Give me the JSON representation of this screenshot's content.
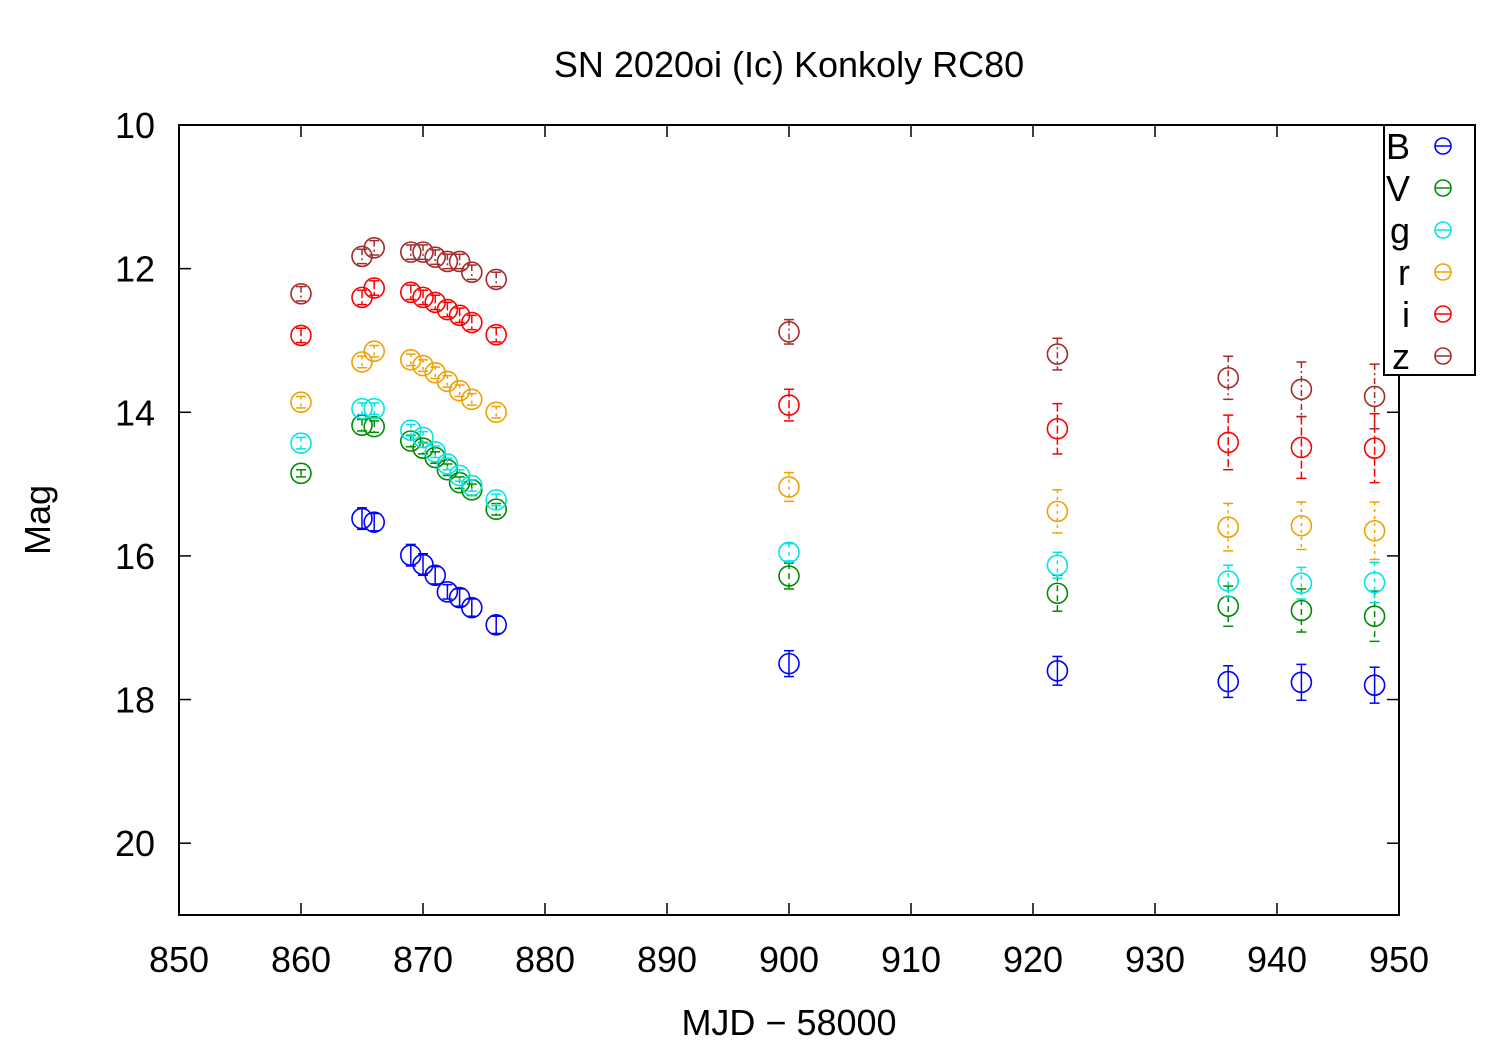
{
  "chart_data": {
    "type": "scatter",
    "title": "SN 2020oi (Ic) Konkoly RC80",
    "xlabel": "MJD − 58000",
    "ylabel": "Mag",
    "xlim": [
      850,
      950
    ],
    "ylim": [
      21,
      10
    ],
    "y_inverted": true,
    "grid": false,
    "legend_position": "top-right",
    "xticks": [
      850,
      860,
      870,
      880,
      890,
      900,
      910,
      920,
      930,
      940,
      950
    ],
    "yticks": [
      10,
      12,
      14,
      16,
      18,
      20
    ],
    "series": [
      {
        "name": "B",
        "color": "#0000ff",
        "x": [
          865,
          866,
          869,
          870,
          871,
          872,
          873,
          874,
          876,
          900,
          922,
          936,
          942,
          948
        ],
        "y": [
          15.48,
          15.53,
          15.99,
          16.12,
          16.27,
          16.5,
          16.58,
          16.72,
          16.96,
          17.5,
          17.6,
          17.75,
          17.76,
          17.8
        ],
        "err": [
          0.15,
          0.12,
          0.15,
          0.15,
          0.12,
          0.1,
          0.12,
          0.12,
          0.12,
          0.18,
          0.2,
          0.22,
          0.25,
          0.25
        ]
      },
      {
        "name": "V",
        "color": "#008c00",
        "x": [
          860,
          865,
          866,
          869,
          870,
          871,
          872,
          873,
          874,
          876,
          900,
          922,
          936,
          942,
          948
        ],
        "y": [
          14.85,
          14.18,
          14.2,
          14.4,
          14.5,
          14.63,
          14.8,
          14.98,
          15.08,
          15.35,
          16.28,
          16.52,
          16.7,
          16.76,
          16.84
        ],
        "err": [
          0.05,
          0.08,
          0.08,
          0.08,
          0.08,
          0.08,
          0.08,
          0.08,
          0.08,
          0.08,
          0.18,
          0.25,
          0.28,
          0.3,
          0.35
        ]
      },
      {
        "name": "g",
        "color": "#00e5e5",
        "x": [
          860,
          865,
          866,
          869,
          870,
          871,
          872,
          873,
          874,
          876,
          900,
          922,
          936,
          942,
          948
        ],
        "y": [
          14.43,
          13.95,
          13.95,
          14.25,
          14.35,
          14.55,
          14.72,
          14.88,
          15.02,
          15.22,
          15.95,
          16.13,
          16.35,
          16.38,
          16.37
        ],
        "err": [
          0.08,
          0.08,
          0.08,
          0.08,
          0.08,
          0.08,
          0.08,
          0.08,
          0.08,
          0.08,
          0.12,
          0.18,
          0.22,
          0.22,
          0.28
        ]
      },
      {
        "name": "r",
        "color": "#f0a000",
        "x": [
          860,
          865,
          866,
          869,
          870,
          871,
          872,
          873,
          874,
          876,
          900,
          922,
          936,
          942,
          948
        ],
        "y": [
          13.86,
          13.3,
          13.15,
          13.27,
          13.35,
          13.45,
          13.57,
          13.7,
          13.82,
          14.0,
          15.04,
          15.38,
          15.6,
          15.58,
          15.65
        ],
        "err": [
          0.08,
          0.08,
          0.08,
          0.08,
          0.08,
          0.08,
          0.08,
          0.08,
          0.08,
          0.08,
          0.2,
          0.3,
          0.33,
          0.33,
          0.4
        ]
      },
      {
        "name": "i",
        "color": "#ff0000",
        "x": [
          860,
          865,
          866,
          869,
          870,
          871,
          872,
          873,
          874,
          876,
          900,
          922,
          936,
          942,
          948
        ],
        "y": [
          12.93,
          12.4,
          12.27,
          12.33,
          12.4,
          12.47,
          12.57,
          12.65,
          12.75,
          12.92,
          13.9,
          14.23,
          14.42,
          14.49,
          14.5
        ],
        "err": [
          0.1,
          0.1,
          0.1,
          0.1,
          0.1,
          0.1,
          0.1,
          0.1,
          0.1,
          0.1,
          0.22,
          0.35,
          0.38,
          0.43,
          0.48
        ]
      },
      {
        "name": "z",
        "color": "#a52a2a",
        "x": [
          860,
          865,
          866,
          869,
          870,
          871,
          872,
          873,
          874,
          876,
          900,
          922,
          936,
          942,
          948
        ],
        "y": [
          12.35,
          11.83,
          11.71,
          11.77,
          11.77,
          11.84,
          11.9,
          11.9,
          12.05,
          12.15,
          12.88,
          13.19,
          13.52,
          13.68,
          13.78
        ],
        "err": [
          0.1,
          0.1,
          0.1,
          0.1,
          0.1,
          0.1,
          0.1,
          0.1,
          0.1,
          0.1,
          0.17,
          0.22,
          0.3,
          0.38,
          0.45
        ]
      }
    ]
  }
}
